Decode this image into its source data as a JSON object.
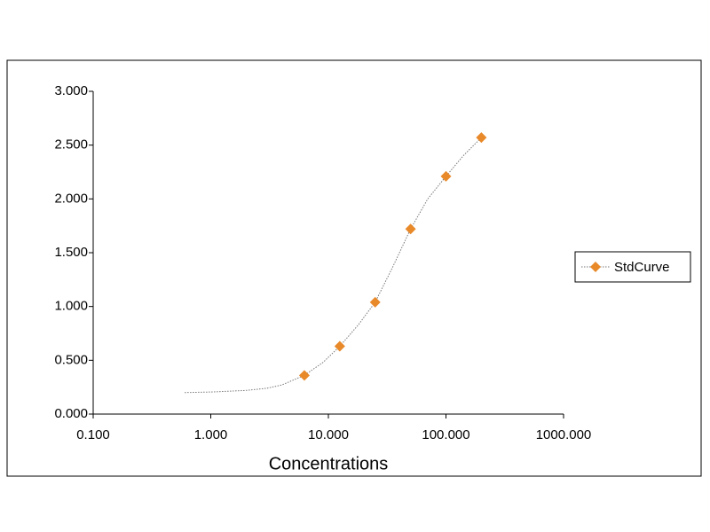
{
  "chart_data": {
    "type": "scatter",
    "x_label": "Concentrations",
    "log_x": true,
    "xlim": [
      0.1,
      1000
    ],
    "xticks": [
      {
        "value": 0.1,
        "label": "0.100"
      },
      {
        "value": 1,
        "label": "1.000"
      },
      {
        "value": 10,
        "label": "10.000"
      },
      {
        "value": 100,
        "label": "100.000"
      },
      {
        "value": 1000,
        "label": "1000.000"
      }
    ],
    "ylim": [
      0,
      3
    ],
    "yticks": [
      {
        "value": 0,
        "label": "0.000"
      },
      {
        "value": 0.5,
        "label": "0.500"
      },
      {
        "value": 1,
        "label": "1.000"
      },
      {
        "value": 1.5,
        "label": "1.500"
      },
      {
        "value": 2,
        "label": "2.000"
      },
      {
        "value": 2.5,
        "label": "2.500"
      },
      {
        "value": 3,
        "label": "3.000"
      }
    ],
    "legend": "right",
    "series": [
      {
        "name": "StdCurve",
        "color": "#e8892a",
        "line_color": "#777777",
        "x": [
          6.25,
          12.5,
          25,
          50,
          100,
          200
        ],
        "values": [
          0.36,
          0.63,
          1.04,
          1.72,
          2.21,
          2.57
        ],
        "fit": {
          "x": [
            0.6,
            1,
            2,
            3,
            4,
            6.25,
            9,
            12.5,
            18,
            25,
            35,
            50,
            70,
            100,
            140,
            200
          ],
          "y": [
            0.2,
            0.205,
            0.22,
            0.24,
            0.27,
            0.36,
            0.48,
            0.63,
            0.83,
            1.04,
            1.36,
            1.72,
            2.0,
            2.21,
            2.4,
            2.57
          ]
        }
      }
    ]
  }
}
